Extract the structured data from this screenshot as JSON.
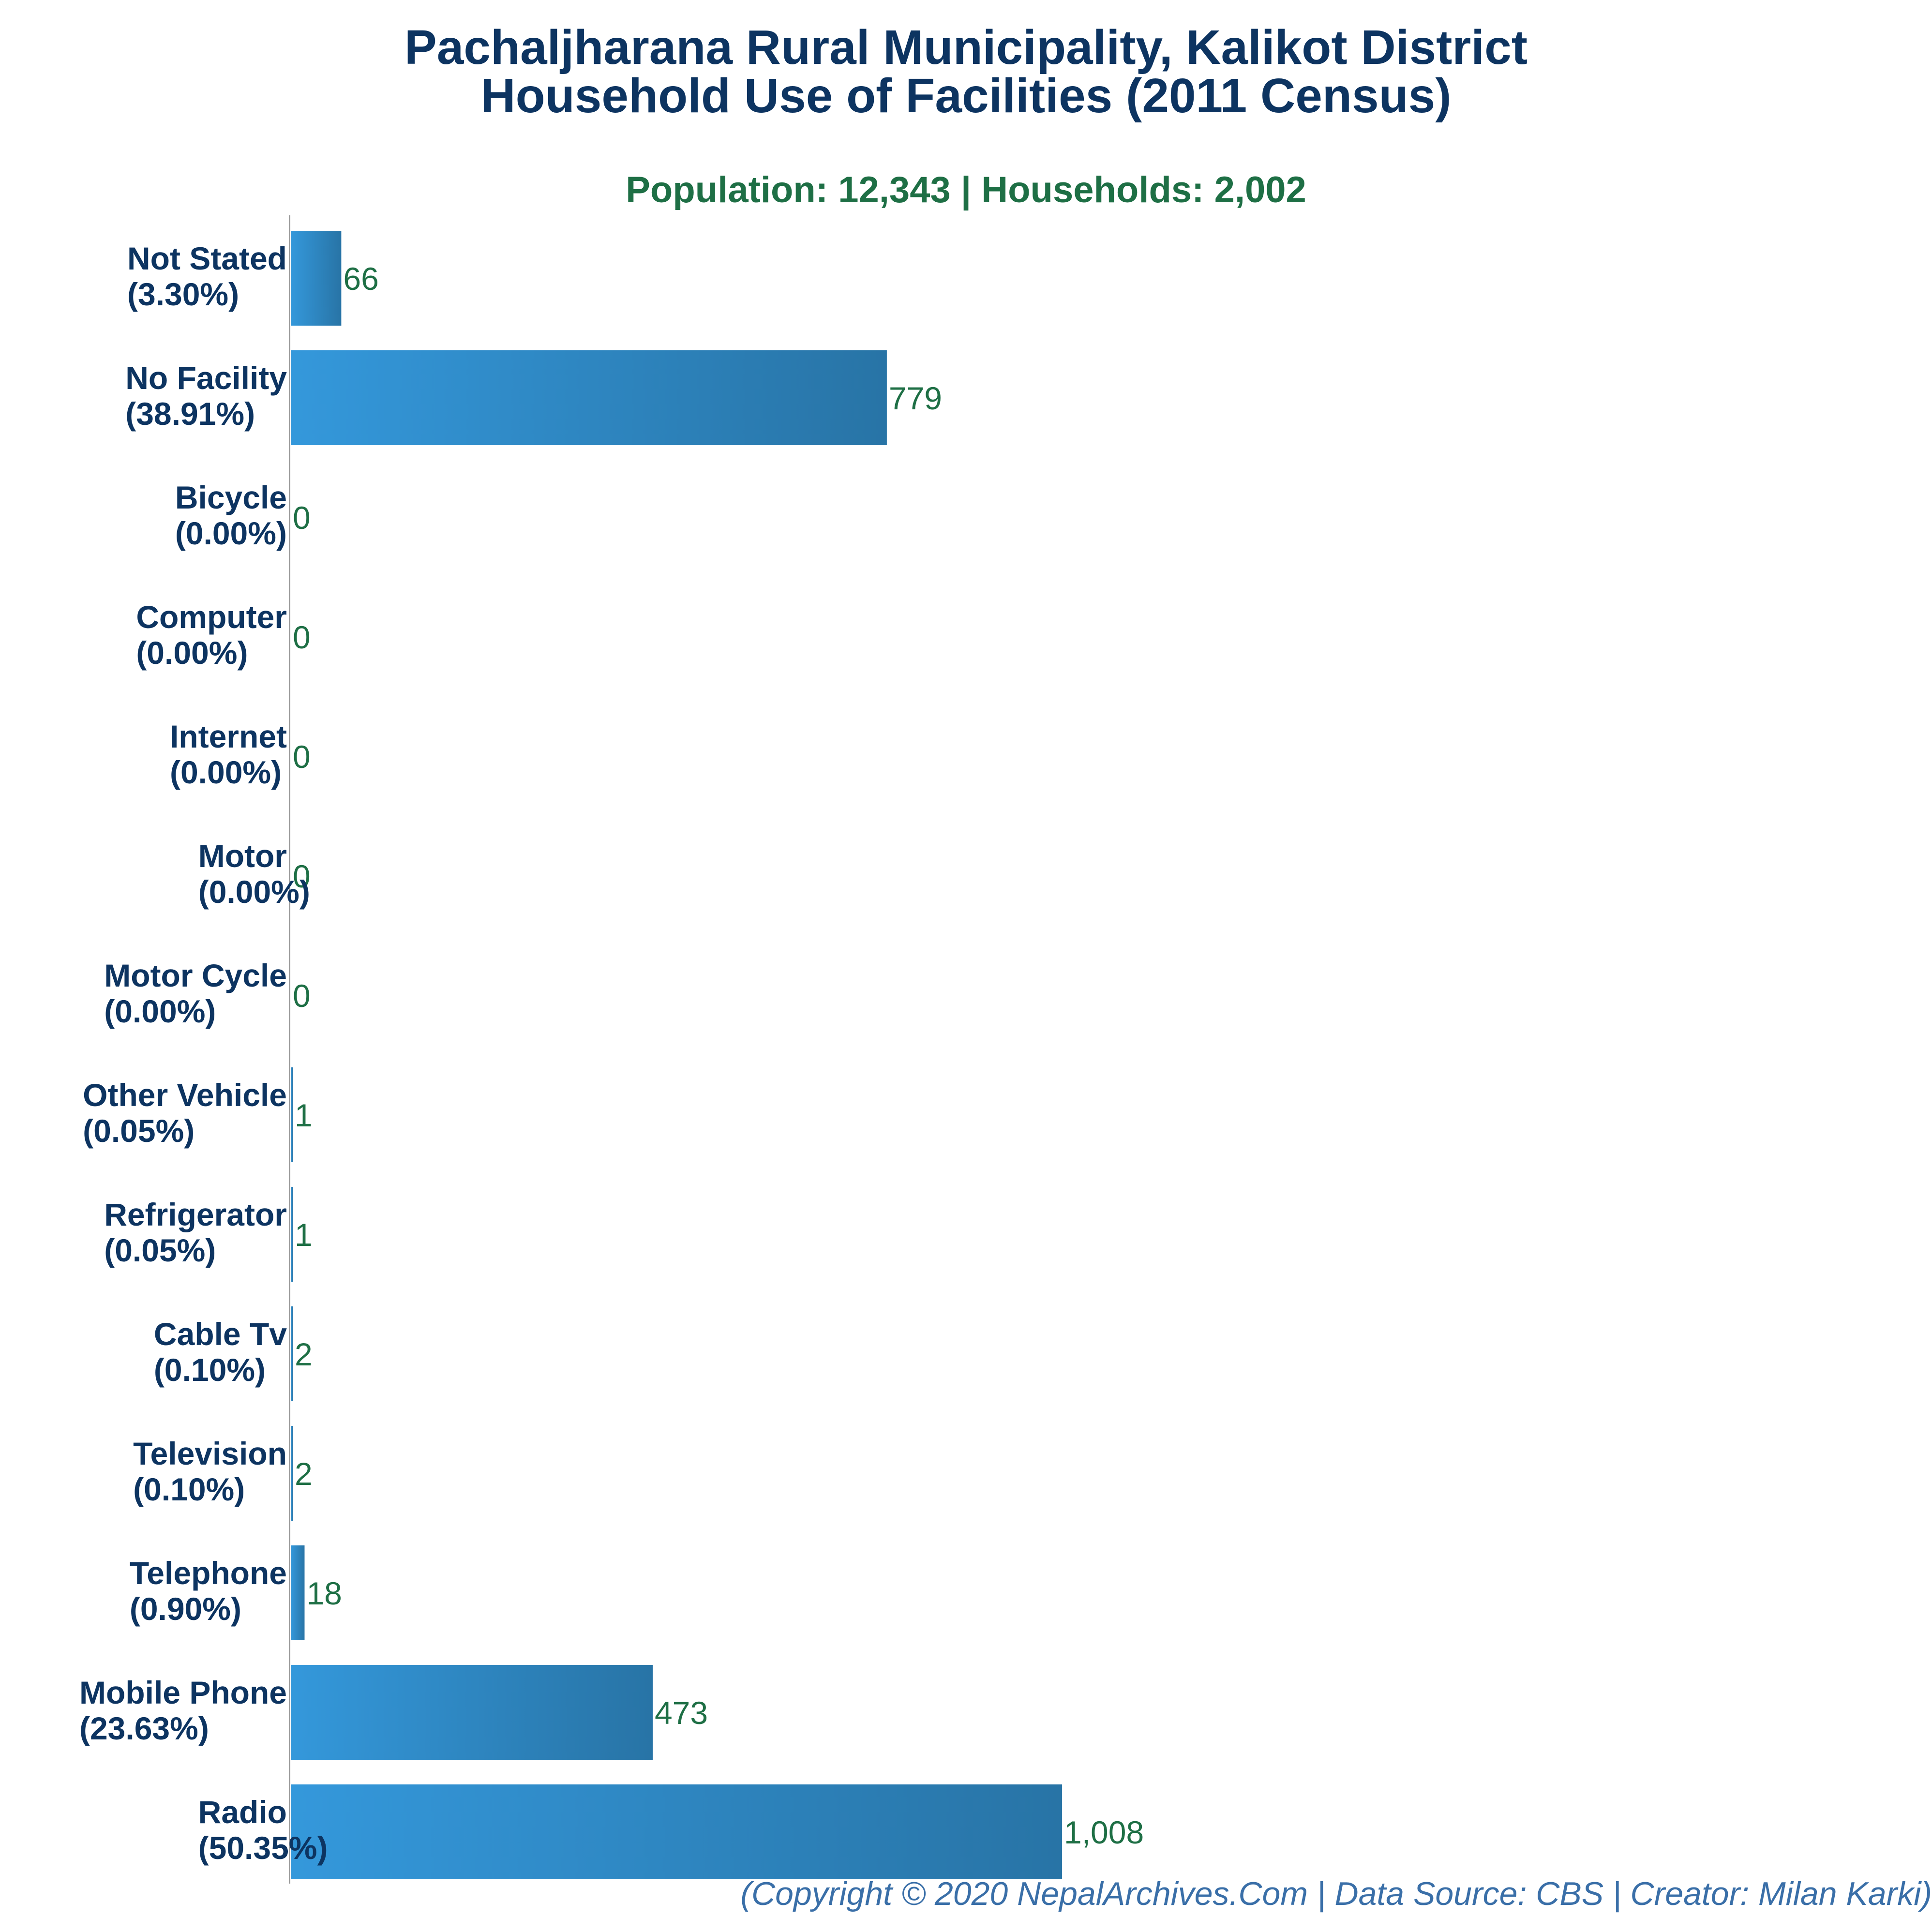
{
  "title_line1": "Pachaljharana Rural Municipality, Kalikot District",
  "title_line2": "Household Use of Facilities (2011 Census)",
  "subtitle": "Population: 12,343 | Households: 2,002",
  "footer": "(Copyright © 2020 NepalArchives.Com | Data Source: CBS | Creator: Milan Karki)",
  "colors": {
    "bar_light": "#3498db",
    "bar_dark": "#2874a6",
    "title": "#0d3461",
    "value_text": "#1e6f45"
  },
  "chart_data": {
    "type": "bar",
    "orientation": "horizontal",
    "categories": [
      "Not Stated",
      "No Facility",
      "Bicycle",
      "Computer",
      "Internet",
      "Motor",
      "Motor Cycle",
      "Other Vehicle",
      "Refrigerator",
      "Cable Tv",
      "Television",
      "Telephone",
      "Mobile Phone",
      "Radio"
    ],
    "percent_labels": [
      "(3.30%)",
      "(38.91%)",
      "(0.00%)",
      "(0.00%)",
      "(0.00%)",
      "(0.00%)",
      "(0.00%)",
      "(0.05%)",
      "(0.05%)",
      "(0.10%)",
      "(0.10%)",
      "(0.90%)",
      "(23.63%)",
      "(50.35%)"
    ],
    "values": [
      66,
      779,
      0,
      0,
      0,
      0,
      0,
      1,
      1,
      2,
      2,
      18,
      473,
      1008
    ],
    "value_labels": [
      "66",
      "779",
      "0",
      "0",
      "0",
      "0",
      "0",
      "1",
      "1",
      "2",
      "2",
      "18",
      "473",
      "1,008"
    ],
    "xlim": [
      0,
      2145
    ],
    "grid": false,
    "legend": "none"
  }
}
